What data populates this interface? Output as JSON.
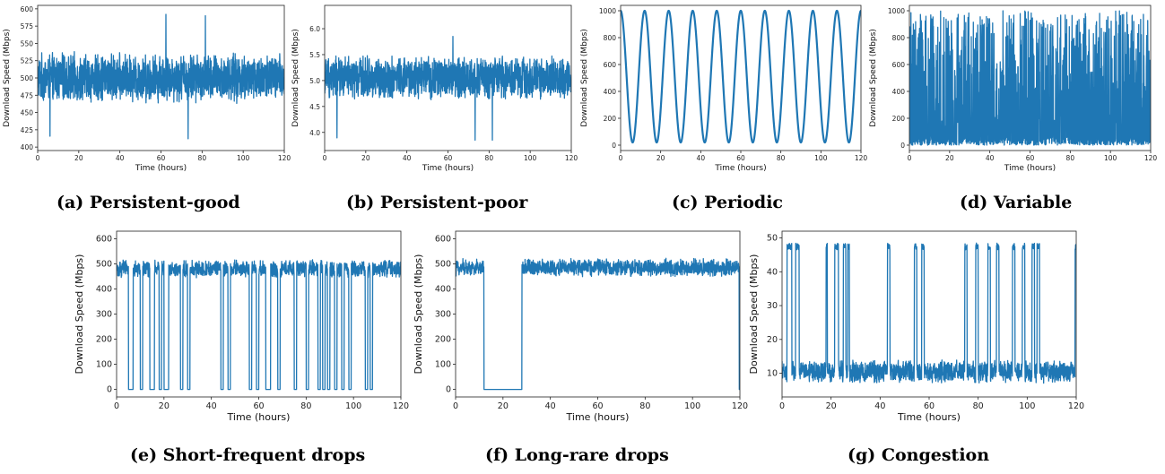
{
  "series_color": "#1f77b4",
  "chart_data": [
    {
      "id": "a",
      "type": "line",
      "caption": "(a) Persistent-good",
      "xlabel": "Time (hours)",
      "ylabel": "Download Speed (Mbps)",
      "xlim": [
        0,
        120
      ],
      "ylim": [
        395,
        605
      ],
      "xticks": [
        0,
        20,
        40,
        60,
        80,
        100,
        120
      ],
      "yticks": [
        400,
        425,
        450,
        475,
        500,
        525,
        550,
        575,
        600
      ],
      "series": [
        {
          "pattern": "noise",
          "mean": 500,
          "spread": 38,
          "spike_max": 592,
          "spike_min": 412
        }
      ]
    },
    {
      "id": "b",
      "type": "line",
      "caption": "(b) Persistent-poor",
      "xlabel": "Time (hours)",
      "ylabel": "Download Speed (Mbps)",
      "xlim": [
        0,
        120
      ],
      "ylim": [
        3.65,
        6.45
      ],
      "xticks": [
        0,
        20,
        40,
        60,
        80,
        100,
        120
      ],
      "yticks": [
        4.0,
        4.5,
        5.0,
        5.5,
        6.0
      ],
      "ytick_labels": [
        "4.0",
        "4.5",
        "5.0",
        "5.5",
        "6.0"
      ],
      "series": [
        {
          "pattern": "noise",
          "mean": 5.05,
          "spread": 0.45,
          "spike_max": 5.85,
          "spike_min": 3.85
        }
      ]
    },
    {
      "id": "c",
      "type": "line",
      "caption": "(c) Periodic",
      "xlabel": "Time (hours)",
      "ylabel": "Download Speed (Mbps)",
      "xlim": [
        0,
        120
      ],
      "ylim": [
        -40,
        1040
      ],
      "xticks": [
        0,
        20,
        40,
        60,
        80,
        100,
        120
      ],
      "yticks": [
        0,
        200,
        400,
        600,
        800,
        1000
      ],
      "series": [
        {
          "pattern": "sine",
          "min": 20,
          "max": 1000,
          "period_hours": 12
        }
      ]
    },
    {
      "id": "d",
      "type": "line",
      "caption": "(d) Variable",
      "xlabel": "Time (hours)",
      "ylabel": "Download Speed (Mbps)",
      "xlim": [
        0,
        120
      ],
      "ylim": [
        -40,
        1040
      ],
      "xticks": [
        0,
        20,
        40,
        60,
        80,
        100,
        120
      ],
      "yticks": [
        0,
        200,
        400,
        600,
        800,
        1000
      ],
      "series": [
        {
          "pattern": "uniform",
          "min": 0,
          "max": 1000
        }
      ]
    },
    {
      "id": "e",
      "type": "line",
      "caption": "(e) Short-frequent drops",
      "xlabel": "Time (hours)",
      "ylabel": "Download Speed (Mbps)",
      "xlim": [
        0,
        120
      ],
      "ylim": [
        -30,
        630
      ],
      "xticks": [
        0,
        20,
        40,
        60,
        80,
        100,
        120
      ],
      "yticks": [
        0,
        100,
        200,
        300,
        400,
        500,
        600
      ],
      "series": [
        {
          "pattern": "drops",
          "mean": 480,
          "spread": 75,
          "low": 0,
          "drops": [
            [
              5,
              7
            ],
            [
              10,
              11
            ],
            [
              14,
              16
            ],
            [
              18,
              19
            ],
            [
              20,
              22
            ],
            [
              27,
              28
            ],
            [
              30,
              31
            ],
            [
              44,
              45
            ],
            [
              47,
              48
            ],
            [
              56,
              57
            ],
            [
              59,
              60
            ],
            [
              63,
              65
            ],
            [
              68,
              69
            ],
            [
              75,
              76
            ],
            [
              80,
              81
            ],
            [
              85,
              86
            ],
            [
              87,
              88
            ],
            [
              89,
              90
            ],
            [
              92,
              93
            ],
            [
              95,
              96
            ],
            [
              98,
              99
            ],
            [
              105,
              106
            ],
            [
              107,
              108
            ]
          ]
        }
      ]
    },
    {
      "id": "f",
      "type": "line",
      "caption": "(f) Long-rare drops",
      "xlabel": "Time (hours)",
      "ylabel": "Download Speed (Mbps)",
      "xlim": [
        0,
        120
      ],
      "ylim": [
        -30,
        630
      ],
      "xticks": [
        0,
        20,
        40,
        60,
        80,
        100,
        120
      ],
      "yticks": [
        0,
        100,
        200,
        300,
        400,
        500,
        600
      ],
      "series": [
        {
          "pattern": "drops",
          "mean": 485,
          "spread": 75,
          "low": 0,
          "drops": [
            [
              12,
              28
            ],
            [
              119.7,
              120
            ]
          ]
        }
      ]
    },
    {
      "id": "g",
      "type": "line",
      "caption": "(g) Congestion",
      "xlabel": "Time (hours)",
      "ylabel": "Download Speed (Mbps)",
      "xlim": [
        0,
        120
      ],
      "ylim": [
        3,
        52
      ],
      "xticks": [
        0,
        20,
        40,
        60,
        80,
        100,
        120
      ],
      "yticks": [
        10,
        20,
        30,
        40,
        50
      ],
      "series": [
        {
          "pattern": "spikes",
          "mean": 10.5,
          "spread": 7,
          "high": 48.5,
          "spikes": [
            [
              2,
              4
            ],
            [
              5.5,
              7
            ],
            [
              18,
              18.5
            ],
            [
              21.5,
              23
            ],
            [
              25,
              26
            ],
            [
              26.8,
              27.5
            ],
            [
              43,
              44
            ],
            [
              54,
              55
            ],
            [
              57,
              58
            ],
            [
              74.5,
              75.5
            ],
            [
              79,
              80
            ],
            [
              84,
              85
            ],
            [
              87.5,
              88.5
            ],
            [
              94,
              95
            ],
            [
              98,
              99
            ],
            [
              102,
              103
            ],
            [
              104,
              105
            ],
            [
              119.5,
              120
            ]
          ]
        }
      ]
    }
  ]
}
